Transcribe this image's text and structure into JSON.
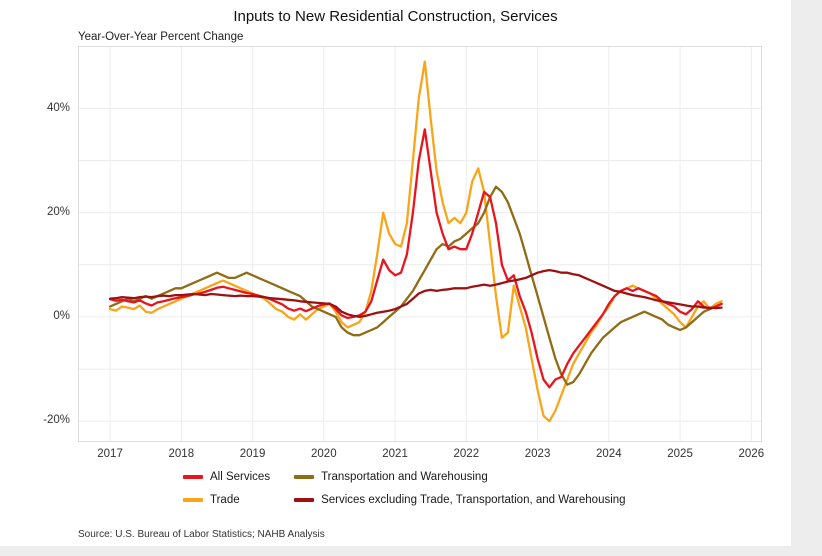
{
  "chart": {
    "title": "Inputs to New Residential Construction, Services",
    "subtitle": "Year-Over-Year Percent Change",
    "source": "Source: U.S. Bureau of Labor Statistics; NAHB Analysis"
  },
  "chart_data": {
    "type": "line",
    "title": "Inputs to New Residential Construction, Services",
    "subtitle": "Year-Over-Year Percent Change",
    "x_start_year": 2017,
    "x_interval": "monthly",
    "xlim": [
      2016.55,
      2026.15
    ],
    "ylim": [
      -24,
      52
    ],
    "x_ticks": [
      2017,
      2018,
      2019,
      2020,
      2021,
      2022,
      2023,
      2024,
      2025,
      2026
    ],
    "y_ticks": [
      {
        "value": 40,
        "label": "40%"
      },
      {
        "value": 20,
        "label": "20%"
      },
      {
        "value": 0,
        "label": "0%"
      },
      {
        "value": -20,
        "label": "-20%"
      }
    ],
    "y_gridlines": [
      -20,
      -10,
      0,
      10,
      20,
      30,
      40
    ],
    "grid": true,
    "legend_position": "bottom",
    "legend_order": [
      0,
      2,
      1,
      3
    ],
    "draw_order": [
      1,
      2,
      0,
      3
    ],
    "series": [
      {
        "name": "All Services",
        "color": "#e8141e",
        "values": [
          3.4,
          3.1,
          3.3,
          3.0,
          2.8,
          3.2,
          2.6,
          2.2,
          2.8,
          3.0,
          3.3,
          3.6,
          3.8,
          4.0,
          4.3,
          4.5,
          4.8,
          5.2,
          5.6,
          5.8,
          5.5,
          5.2,
          4.9,
          4.6,
          4.4,
          4.1,
          3.8,
          3.4,
          2.9,
          2.4,
          1.6,
          1.2,
          1.6,
          1.1,
          1.6,
          2.1,
          2.4,
          2.6,
          1.5,
          0.3,
          -0.2,
          0.0,
          0.3,
          1.0,
          3.0,
          7.0,
          11.0,
          9.0,
          8.0,
          8.5,
          12.0,
          20.0,
          30.0,
          36.0,
          28.0,
          20.0,
          16.0,
          13.0,
          13.5,
          13.0,
          13.0,
          16.0,
          20.0,
          24.0,
          23.0,
          18.0,
          10.0,
          7.0,
          8.0,
          4.0,
          1.0,
          -3.0,
          -8.0,
          -12.0,
          -13.5,
          -12.0,
          -11.5,
          -9.0,
          -7.0,
          -5.5,
          -4.0,
          -2.5,
          -1.0,
          0.5,
          2.5,
          4.0,
          5.0,
          5.5,
          5.0,
          5.5,
          5.0,
          4.5,
          4.0,
          3.0,
          2.5,
          2.0,
          1.0,
          0.5,
          1.5,
          3.0,
          2.0,
          1.5,
          2.0,
          2.5
        ]
      },
      {
        "name": "Trade",
        "color": "#f9a51a",
        "values": [
          1.5,
          1.2,
          2.0,
          1.8,
          1.5,
          2.2,
          1.0,
          0.8,
          1.5,
          2.0,
          2.5,
          3.0,
          3.5,
          4.0,
          4.5,
          5.0,
          5.5,
          6.0,
          6.5,
          7.0,
          6.5,
          6.0,
          5.5,
          5.0,
          4.5,
          4.0,
          3.5,
          2.5,
          1.5,
          1.0,
          0.0,
          -0.5,
          0.5,
          -0.5,
          0.5,
          1.5,
          2.0,
          2.5,
          1.0,
          -1.0,
          -2.0,
          -1.5,
          -1.0,
          1.0,
          5.0,
          12.0,
          20.0,
          16.0,
          14.0,
          13.5,
          18.0,
          30.0,
          42.0,
          49.0,
          38.0,
          28.0,
          22.0,
          18.0,
          19.0,
          18.0,
          20.0,
          26.0,
          28.5,
          24.0,
          14.0,
          4.0,
          -4.0,
          -3.0,
          6.0,
          2.0,
          -2.0,
          -8.0,
          -14.0,
          -19.0,
          -20.0,
          -18.0,
          -15.0,
          -12.0,
          -9.0,
          -7.0,
          -5.0,
          -3.0,
          -1.5,
          0.5,
          2.0,
          4.0,
          5.0,
          5.5,
          6.0,
          5.5,
          5.0,
          4.5,
          3.5,
          2.5,
          1.5,
          0.5,
          -1.0,
          -2.0,
          0.0,
          2.0,
          3.0,
          1.5,
          2.5,
          3.0
        ]
      },
      {
        "name": "Transportation and Warehousing",
        "color": "#8f6c15",
        "values": [
          2.0,
          2.5,
          3.0,
          3.5,
          3.0,
          3.5,
          4.0,
          3.5,
          4.0,
          4.5,
          5.0,
          5.5,
          5.5,
          6.0,
          6.5,
          7.0,
          7.5,
          8.0,
          8.5,
          8.0,
          7.5,
          7.5,
          8.0,
          8.5,
          8.0,
          7.5,
          7.0,
          6.5,
          6.0,
          5.5,
          5.0,
          4.5,
          4.0,
          3.0,
          2.0,
          1.5,
          1.0,
          0.5,
          0.0,
          -2.0,
          -3.0,
          -3.5,
          -3.5,
          -3.0,
          -2.5,
          -2.0,
          -1.0,
          0.0,
          1.0,
          2.0,
          3.5,
          5.0,
          7.0,
          9.0,
          11.0,
          13.0,
          14.0,
          13.5,
          14.5,
          15.0,
          16.0,
          17.0,
          18.0,
          20.0,
          23.0,
          25.0,
          24.0,
          22.0,
          19.0,
          16.0,
          12.0,
          8.0,
          4.0,
          0.0,
          -4.0,
          -8.0,
          -11.0,
          -13.0,
          -12.5,
          -11.0,
          -9.0,
          -7.0,
          -5.5,
          -4.0,
          -3.0,
          -2.0,
          -1.0,
          -0.5,
          0.0,
          0.5,
          1.0,
          0.5,
          0.0,
          -0.5,
          -1.5,
          -2.0,
          -2.5,
          -2.0,
          -1.0,
          0.0,
          1.0,
          1.5,
          2.0,
          2.5
        ]
      },
      {
        "name": "Services excluding Trade, Transportation, and Warehousing",
        "color": "#9c1213",
        "values": [
          3.5,
          3.6,
          3.8,
          3.7,
          3.6,
          3.8,
          3.9,
          3.8,
          4.0,
          4.1,
          4.0,
          4.2,
          4.2,
          4.3,
          4.4,
          4.3,
          4.2,
          4.4,
          4.3,
          4.2,
          4.1,
          4.0,
          4.1,
          4.0,
          4.0,
          3.9,
          3.8,
          3.6,
          3.5,
          3.4,
          3.3,
          3.2,
          3.0,
          2.9,
          2.8,
          2.7,
          2.6,
          2.5,
          2.0,
          1.0,
          0.5,
          0.2,
          0.0,
          0.2,
          0.5,
          0.8,
          1.0,
          1.2,
          1.5,
          2.0,
          2.5,
          3.5,
          4.5,
          5.0,
          5.2,
          5.0,
          5.2,
          5.3,
          5.5,
          5.5,
          5.5,
          5.8,
          6.0,
          6.2,
          6.0,
          6.2,
          6.5,
          6.8,
          7.0,
          7.2,
          7.5,
          8.0,
          8.5,
          8.8,
          9.0,
          8.8,
          8.5,
          8.5,
          8.2,
          8.0,
          7.5,
          7.0,
          6.5,
          6.0,
          5.5,
          5.0,
          4.8,
          4.5,
          4.2,
          4.0,
          3.8,
          3.5,
          3.2,
          3.0,
          2.8,
          2.6,
          2.4,
          2.2,
          2.0,
          2.0,
          1.8,
          1.8,
          1.7,
          1.8
        ]
      }
    ]
  }
}
